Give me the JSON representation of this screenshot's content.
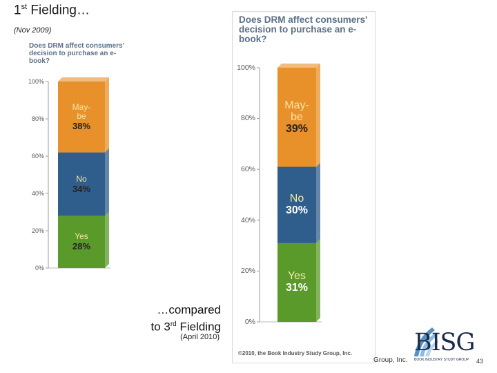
{
  "slide": {
    "title_main": "1",
    "title_sup": "st",
    "title_rest": " Fielding…",
    "date_first": "(Nov 2009)",
    "compared_line1": "…compared",
    "compared_line2_pre": "to 3",
    "compared_line2_sup": "rd",
    "compared_line2_post": " Fielding",
    "date_second": "(April 2010)",
    "footer_right": "Group, Inc.",
    "page_number": "43",
    "logo_text": "BISG",
    "logo_subtext": "BOOK INDUSTRY STUDY GROUP",
    "copyright": "©2010, the Book Industry Study Group, Inc."
  },
  "colors": {
    "yes": "#5a9a2a",
    "no": "#2f5d8c",
    "maybe": "#e8902a",
    "value_text_first": "#222222",
    "value_text_second": "#ffffff"
  },
  "chart_data": [
    {
      "type": "bar",
      "stacked": true,
      "title": "Does DRM affect consumers' decision to purchase an e-book?",
      "ylim": [
        0,
        100
      ],
      "yticks": [
        "0%",
        "20%",
        "40%",
        "60%",
        "80%",
        "100%"
      ],
      "segments": [
        {
          "name": "Yes",
          "label": "Yes",
          "value": 28,
          "value_text": "28%"
        },
        {
          "name": "No",
          "label": "No",
          "value": 34,
          "value_text": "34%"
        },
        {
          "name": "Maybe",
          "label": "May-\nbe",
          "value": 38,
          "value_text": "38%"
        }
      ]
    },
    {
      "type": "bar",
      "stacked": true,
      "title": "Does DRM affect consumers' decision to purchase an e-book?",
      "ylim": [
        0,
        100
      ],
      "yticks": [
        "0%",
        "20%",
        "40%",
        "60%",
        "80%",
        "100%"
      ],
      "segments": [
        {
          "name": "Yes",
          "label": "Yes",
          "value": 31,
          "value_text": "31%"
        },
        {
          "name": "No",
          "label": "No",
          "value": 30,
          "value_text": "30%"
        },
        {
          "name": "Maybe",
          "label": "May-\nbe",
          "value": 39,
          "value_text": "39%"
        }
      ]
    }
  ]
}
